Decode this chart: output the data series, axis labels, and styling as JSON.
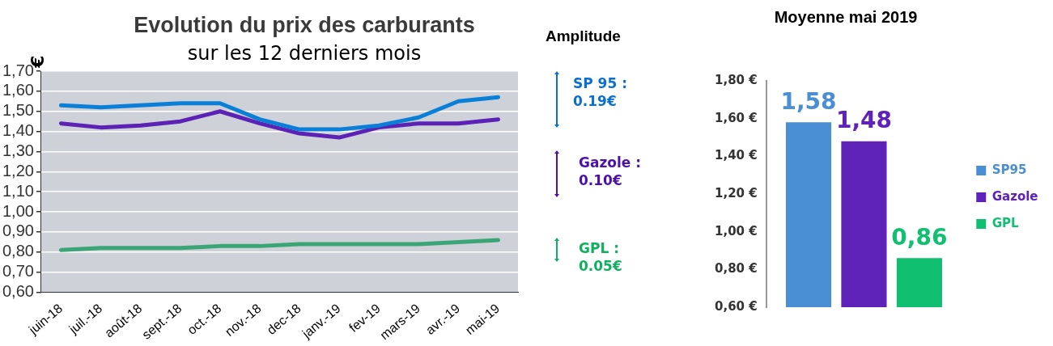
{
  "chart_data": [
    {
      "type": "line",
      "title": "Evolution du prix des carburants",
      "subtitle": "sur les 12 derniers mois",
      "ylabel": "€",
      "categories": [
        "juin-18",
        "juil.-18",
        "août-18",
        "sept.-18",
        "oct.-18",
        "nov.-18",
        "dec-18",
        "janv.-19",
        "fev-19",
        "mars-19",
        "avr.-19",
        "mai-19"
      ],
      "series": [
        {
          "color": "#0a7fd8",
          "values": [
            1.53,
            1.52,
            1.53,
            1.54,
            1.54,
            1.46,
            1.41,
            1.41,
            1.43,
            1.47,
            1.55,
            1.57
          ]
        },
        {
          "color": "#5b22b5",
          "values": [
            1.44,
            1.42,
            1.43,
            1.45,
            1.5,
            1.44,
            1.39,
            1.37,
            1.42,
            1.44,
            1.44,
            1.46
          ]
        },
        {
          "color": "#3aa676",
          "values": [
            0.81,
            0.82,
            0.82,
            0.82,
            0.83,
            0.83,
            0.84,
            0.84,
            0.84,
            0.84,
            0.85,
            0.86
          ]
        }
      ],
      "ylim": [
        0.6,
        1.7
      ],
      "yticks": [
        {
          "value": 0.6,
          "label": "0,60"
        },
        {
          "value": 0.7,
          "label": "0,70"
        },
        {
          "value": 0.8,
          "label": "0,80"
        },
        {
          "value": 0.9,
          "label": "0,90"
        },
        {
          "value": 1.0,
          "label": "1,00"
        },
        {
          "value": 1.1,
          "label": "1,10"
        },
        {
          "value": 1.2,
          "label": "1,20"
        },
        {
          "value": 1.3,
          "label": "1,30"
        },
        {
          "value": 1.4,
          "label": "1,40"
        },
        {
          "value": 1.5,
          "label": "1,50"
        },
        {
          "value": 1.6,
          "label": "1,60"
        },
        {
          "value": 1.7,
          "label": "1,70"
        }
      ],
      "grid": "y",
      "legend": false,
      "marker": "none",
      "line_style": "solid"
    },
    {
      "type": "other",
      "title": "Amplitude",
      "annotations": [
        "SP 95 :\n0.19€",
        "Gazole :\n0.10€",
        "GPL :\n0.05€"
      ],
      "colors": [
        "#0a6fd0",
        "#4a12a8",
        "#10b060"
      ]
    },
    {
      "type": "bar",
      "title": "Moyenne mai 2019",
      "categories": [
        null
      ],
      "series": [
        {
          "name": "SP95",
          "color": "#4a8fd4",
          "values": [
            1.58
          ],
          "value_labels": [
            "1,58"
          ]
        },
        {
          "name": "Gazole",
          "color": "#5e22b8",
          "values": [
            1.48
          ],
          "value_labels": [
            "1,48"
          ]
        },
        {
          "name": "GPL",
          "color": "#10c070",
          "values": [
            0.86
          ],
          "value_labels": [
            "0,86"
          ]
        }
      ],
      "ylim": [
        0.6,
        1.8
      ],
      "yticks": [
        {
          "value": 0.6,
          "label": "0,60 €"
        },
        {
          "value": 0.8,
          "label": "0,80 €"
        },
        {
          "value": 1.0,
          "label": "1,00 €"
        },
        {
          "value": 1.2,
          "label": "1,20 €"
        },
        {
          "value": 1.4,
          "label": "1,40 €"
        },
        {
          "value": 1.6,
          "label": "1,60 €"
        },
        {
          "value": 1.8,
          "label": "1,80 €"
        }
      ],
      "grid": false,
      "legend": "right"
    }
  ]
}
